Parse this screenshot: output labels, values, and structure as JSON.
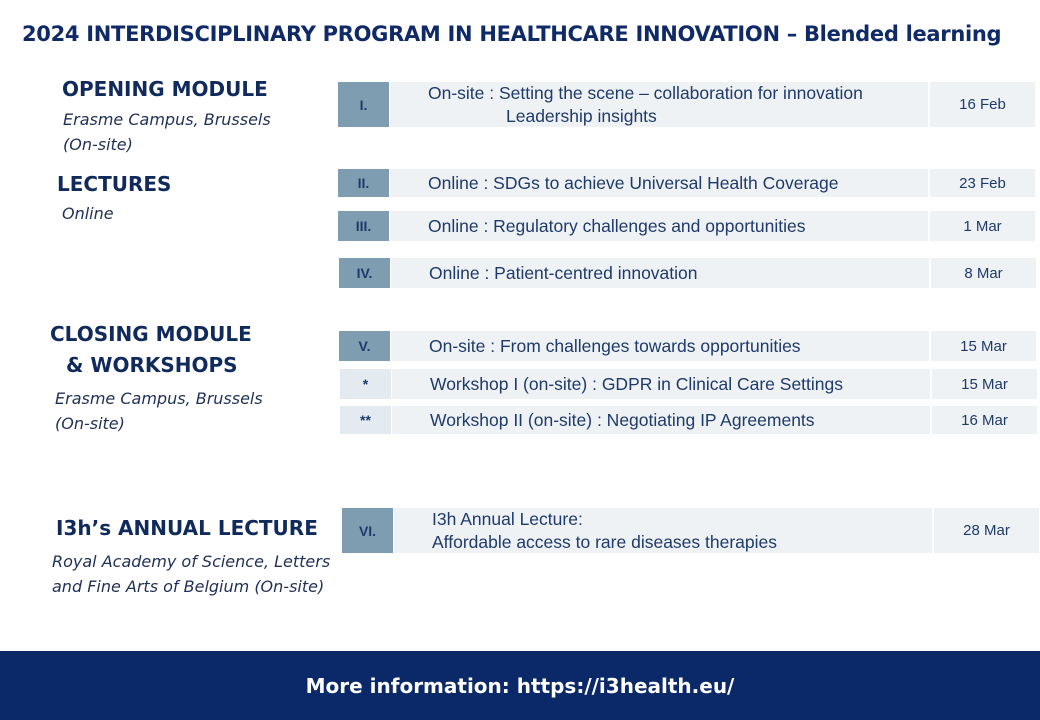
{
  "title": "2024 INTERDISCIPLINARY PROGRAM IN HEALTHCARE INNOVATION – Blended learning",
  "sections": [
    {
      "heading": [
        "OPENING MODULE"
      ],
      "location": [
        "Erasme Campus, Brussels",
        "(On-site)"
      ]
    },
    {
      "heading": [
        "LECTURES"
      ],
      "location": [
        "Online"
      ]
    },
    {
      "heading": [
        "CLOSING MODULE",
        "& WORKSHOPS"
      ],
      "location": [
        "Erasme Campus, Brussels",
        "(On-site)"
      ]
    },
    {
      "heading": [
        "I3h’s ANNUAL LECTURE"
      ],
      "location": [
        "Royal Academy of Science, Letters",
        "and Fine Arts of Belgium (On-site)"
      ]
    }
  ],
  "rows": [
    {
      "number": "I.",
      "lines": [
        "On-site : Setting the scene – collaboration for innovation",
        "Leadership insights"
      ],
      "date": "16 Feb"
    },
    {
      "number": "II.",
      "lines": [
        "Online : SDGs to achieve Universal Health Coverage"
      ],
      "date": "23 Feb"
    },
    {
      "number": "III.",
      "lines": [
        "Online : Regulatory challenges and opportunities"
      ],
      "date": "1 Mar"
    },
    {
      "number": "IV.",
      "lines": [
        "Online : Patient-centred innovation"
      ],
      "date": "8  Mar"
    },
    {
      "number": "V.",
      "lines": [
        "On-site : From challenges towards opportunities"
      ],
      "date": "15  Mar"
    },
    {
      "number": "*",
      "lines": [
        "Workshop I (on-site) : GDPR in Clinical Care Settings"
      ],
      "date": "15  Mar"
    },
    {
      "number": "**",
      "lines": [
        "Workshop II (on-site) : Negotiating IP Agreements"
      ],
      "date": "16  Mar"
    },
    {
      "number": "VI.",
      "lines": [
        "I3h Annual Lecture:",
        "Affordable access to rare diseases therapies"
      ],
      "date": "28  Mar"
    }
  ],
  "footer": "More information: https://i3health.eu/"
}
